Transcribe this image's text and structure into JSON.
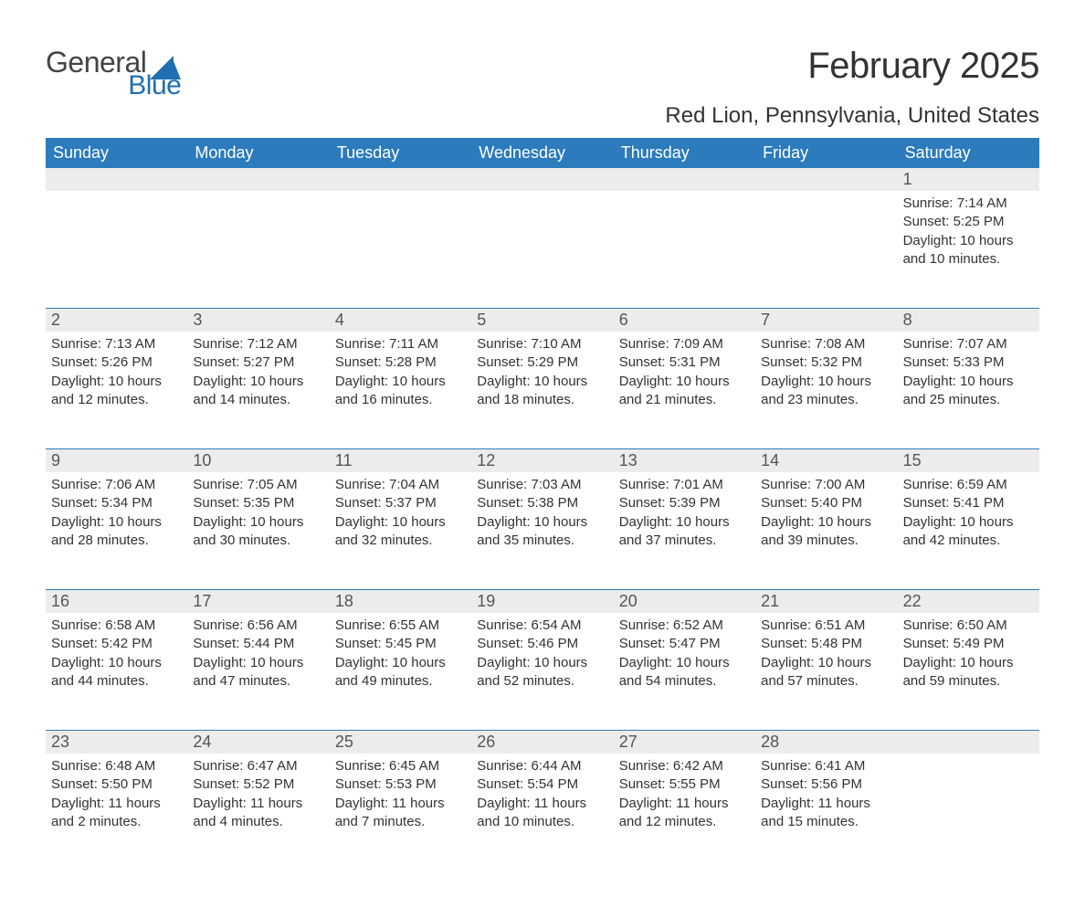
{
  "logo": {
    "text_general": "General",
    "text_blue": "Blue"
  },
  "title": "February 2025",
  "location": "Red Lion, Pennsylvania, United States",
  "colors": {
    "header_bg": "#2b7bbd",
    "header_text": "#ffffff",
    "daynum_bg": "#ececec",
    "body_text": "#333333",
    "rule": "#2b7bbd",
    "logo_dark": "#444444",
    "logo_blue": "#1f6fb2"
  },
  "day_names": [
    "Sunday",
    "Monday",
    "Tuesday",
    "Wednesday",
    "Thursday",
    "Friday",
    "Saturday"
  ],
  "weeks": [
    {
      "nums": [
        "",
        "",
        "",
        "",
        "",
        "",
        "1"
      ],
      "cells": [
        null,
        null,
        null,
        null,
        null,
        null,
        {
          "sunrise": "Sunrise: 7:14 AM",
          "sunset": "Sunset: 5:25 PM",
          "dl1": "Daylight: 10 hours",
          "dl2": "and 10 minutes."
        }
      ]
    },
    {
      "nums": [
        "2",
        "3",
        "4",
        "5",
        "6",
        "7",
        "8"
      ],
      "cells": [
        {
          "sunrise": "Sunrise: 7:13 AM",
          "sunset": "Sunset: 5:26 PM",
          "dl1": "Daylight: 10 hours",
          "dl2": "and 12 minutes."
        },
        {
          "sunrise": "Sunrise: 7:12 AM",
          "sunset": "Sunset: 5:27 PM",
          "dl1": "Daylight: 10 hours",
          "dl2": "and 14 minutes."
        },
        {
          "sunrise": "Sunrise: 7:11 AM",
          "sunset": "Sunset: 5:28 PM",
          "dl1": "Daylight: 10 hours",
          "dl2": "and 16 minutes."
        },
        {
          "sunrise": "Sunrise: 7:10 AM",
          "sunset": "Sunset: 5:29 PM",
          "dl1": "Daylight: 10 hours",
          "dl2": "and 18 minutes."
        },
        {
          "sunrise": "Sunrise: 7:09 AM",
          "sunset": "Sunset: 5:31 PM",
          "dl1": "Daylight: 10 hours",
          "dl2": "and 21 minutes."
        },
        {
          "sunrise": "Sunrise: 7:08 AM",
          "sunset": "Sunset: 5:32 PM",
          "dl1": "Daylight: 10 hours",
          "dl2": "and 23 minutes."
        },
        {
          "sunrise": "Sunrise: 7:07 AM",
          "sunset": "Sunset: 5:33 PM",
          "dl1": "Daylight: 10 hours",
          "dl2": "and 25 minutes."
        }
      ]
    },
    {
      "nums": [
        "9",
        "10",
        "11",
        "12",
        "13",
        "14",
        "15"
      ],
      "cells": [
        {
          "sunrise": "Sunrise: 7:06 AM",
          "sunset": "Sunset: 5:34 PM",
          "dl1": "Daylight: 10 hours",
          "dl2": "and 28 minutes."
        },
        {
          "sunrise": "Sunrise: 7:05 AM",
          "sunset": "Sunset: 5:35 PM",
          "dl1": "Daylight: 10 hours",
          "dl2": "and 30 minutes."
        },
        {
          "sunrise": "Sunrise: 7:04 AM",
          "sunset": "Sunset: 5:37 PM",
          "dl1": "Daylight: 10 hours",
          "dl2": "and 32 minutes."
        },
        {
          "sunrise": "Sunrise: 7:03 AM",
          "sunset": "Sunset: 5:38 PM",
          "dl1": "Daylight: 10 hours",
          "dl2": "and 35 minutes."
        },
        {
          "sunrise": "Sunrise: 7:01 AM",
          "sunset": "Sunset: 5:39 PM",
          "dl1": "Daylight: 10 hours",
          "dl2": "and 37 minutes."
        },
        {
          "sunrise": "Sunrise: 7:00 AM",
          "sunset": "Sunset: 5:40 PM",
          "dl1": "Daylight: 10 hours",
          "dl2": "and 39 minutes."
        },
        {
          "sunrise": "Sunrise: 6:59 AM",
          "sunset": "Sunset: 5:41 PM",
          "dl1": "Daylight: 10 hours",
          "dl2": "and 42 minutes."
        }
      ]
    },
    {
      "nums": [
        "16",
        "17",
        "18",
        "19",
        "20",
        "21",
        "22"
      ],
      "cells": [
        {
          "sunrise": "Sunrise: 6:58 AM",
          "sunset": "Sunset: 5:42 PM",
          "dl1": "Daylight: 10 hours",
          "dl2": "and 44 minutes."
        },
        {
          "sunrise": "Sunrise: 6:56 AM",
          "sunset": "Sunset: 5:44 PM",
          "dl1": "Daylight: 10 hours",
          "dl2": "and 47 minutes."
        },
        {
          "sunrise": "Sunrise: 6:55 AM",
          "sunset": "Sunset: 5:45 PM",
          "dl1": "Daylight: 10 hours",
          "dl2": "and 49 minutes."
        },
        {
          "sunrise": "Sunrise: 6:54 AM",
          "sunset": "Sunset: 5:46 PM",
          "dl1": "Daylight: 10 hours",
          "dl2": "and 52 minutes."
        },
        {
          "sunrise": "Sunrise: 6:52 AM",
          "sunset": "Sunset: 5:47 PM",
          "dl1": "Daylight: 10 hours",
          "dl2": "and 54 minutes."
        },
        {
          "sunrise": "Sunrise: 6:51 AM",
          "sunset": "Sunset: 5:48 PM",
          "dl1": "Daylight: 10 hours",
          "dl2": "and 57 minutes."
        },
        {
          "sunrise": "Sunrise: 6:50 AM",
          "sunset": "Sunset: 5:49 PM",
          "dl1": "Daylight: 10 hours",
          "dl2": "and 59 minutes."
        }
      ]
    },
    {
      "nums": [
        "23",
        "24",
        "25",
        "26",
        "27",
        "28",
        ""
      ],
      "cells": [
        {
          "sunrise": "Sunrise: 6:48 AM",
          "sunset": "Sunset: 5:50 PM",
          "dl1": "Daylight: 11 hours",
          "dl2": "and 2 minutes."
        },
        {
          "sunrise": "Sunrise: 6:47 AM",
          "sunset": "Sunset: 5:52 PM",
          "dl1": "Daylight: 11 hours",
          "dl2": "and 4 minutes."
        },
        {
          "sunrise": "Sunrise: 6:45 AM",
          "sunset": "Sunset: 5:53 PM",
          "dl1": "Daylight: 11 hours",
          "dl2": "and 7 minutes."
        },
        {
          "sunrise": "Sunrise: 6:44 AM",
          "sunset": "Sunset: 5:54 PM",
          "dl1": "Daylight: 11 hours",
          "dl2": "and 10 minutes."
        },
        {
          "sunrise": "Sunrise: 6:42 AM",
          "sunset": "Sunset: 5:55 PM",
          "dl1": "Daylight: 11 hours",
          "dl2": "and 12 minutes."
        },
        {
          "sunrise": "Sunrise: 6:41 AM",
          "sunset": "Sunset: 5:56 PM",
          "dl1": "Daylight: 11 hours",
          "dl2": "and 15 minutes."
        },
        null
      ]
    }
  ]
}
